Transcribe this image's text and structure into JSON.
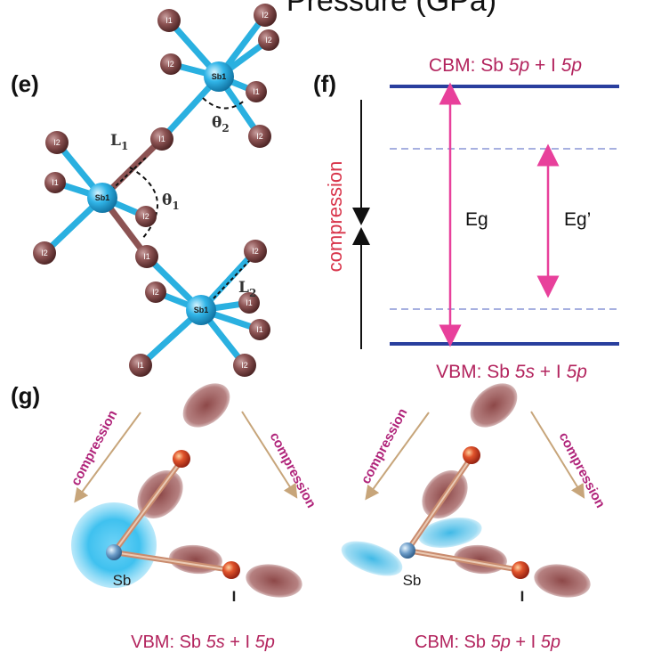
{
  "header_partial": "Pressure (GPa)",
  "panel_labels": {
    "e": "(e)",
    "f": "(f)",
    "g": "(g)"
  },
  "structure": {
    "sb_label": "Sb1",
    "bond_labels": {
      "L1_main": "L",
      "L1_sub": "1",
      "L2_main": "L",
      "L2_sub": "2"
    },
    "angle_labels": {
      "theta1_main": "θ",
      "theta1_sub": "1",
      "theta2_main": "θ",
      "theta2_sub": "2"
    },
    "atom_labels": {
      "i1": "I1",
      "i2": "I2"
    }
  },
  "band_diagram": {
    "cbm_prefix": "CBM: Sb ",
    "cbm_orb1": "5p",
    "cbm_mid": " + I ",
    "cbm_orb2": "5p",
    "vbm_prefix": "VBM: Sb ",
    "vbm_orb1": "5s",
    "vbm_mid": " + I ",
    "vbm_orb2": "5p",
    "compression_label": "compression",
    "eg_label": "Eg",
    "eg_prime_label": "Eg’",
    "colors": {
      "band_line": "#2a3f9e",
      "dashed_line": "#8a96d6",
      "gap_arrow": "#e8409b"
    }
  },
  "orbitals": {
    "compression_label": "compression",
    "sb_label": "Sb",
    "i_label": "I",
    "vbm_caption": {
      "prefix": "VBM: Sb ",
      "orb1": "5s",
      "mid": " + I ",
      "orb2": "5p"
    },
    "cbm_caption": {
      "prefix": "CBM: Sb ",
      "orb1": "5p",
      "mid": " + I ",
      "orb2": "5p"
    },
    "colors": {
      "lobe": "#8a3d3d",
      "sb_cloud": "#3cc0ef",
      "arrow": "#c7a57a"
    }
  }
}
